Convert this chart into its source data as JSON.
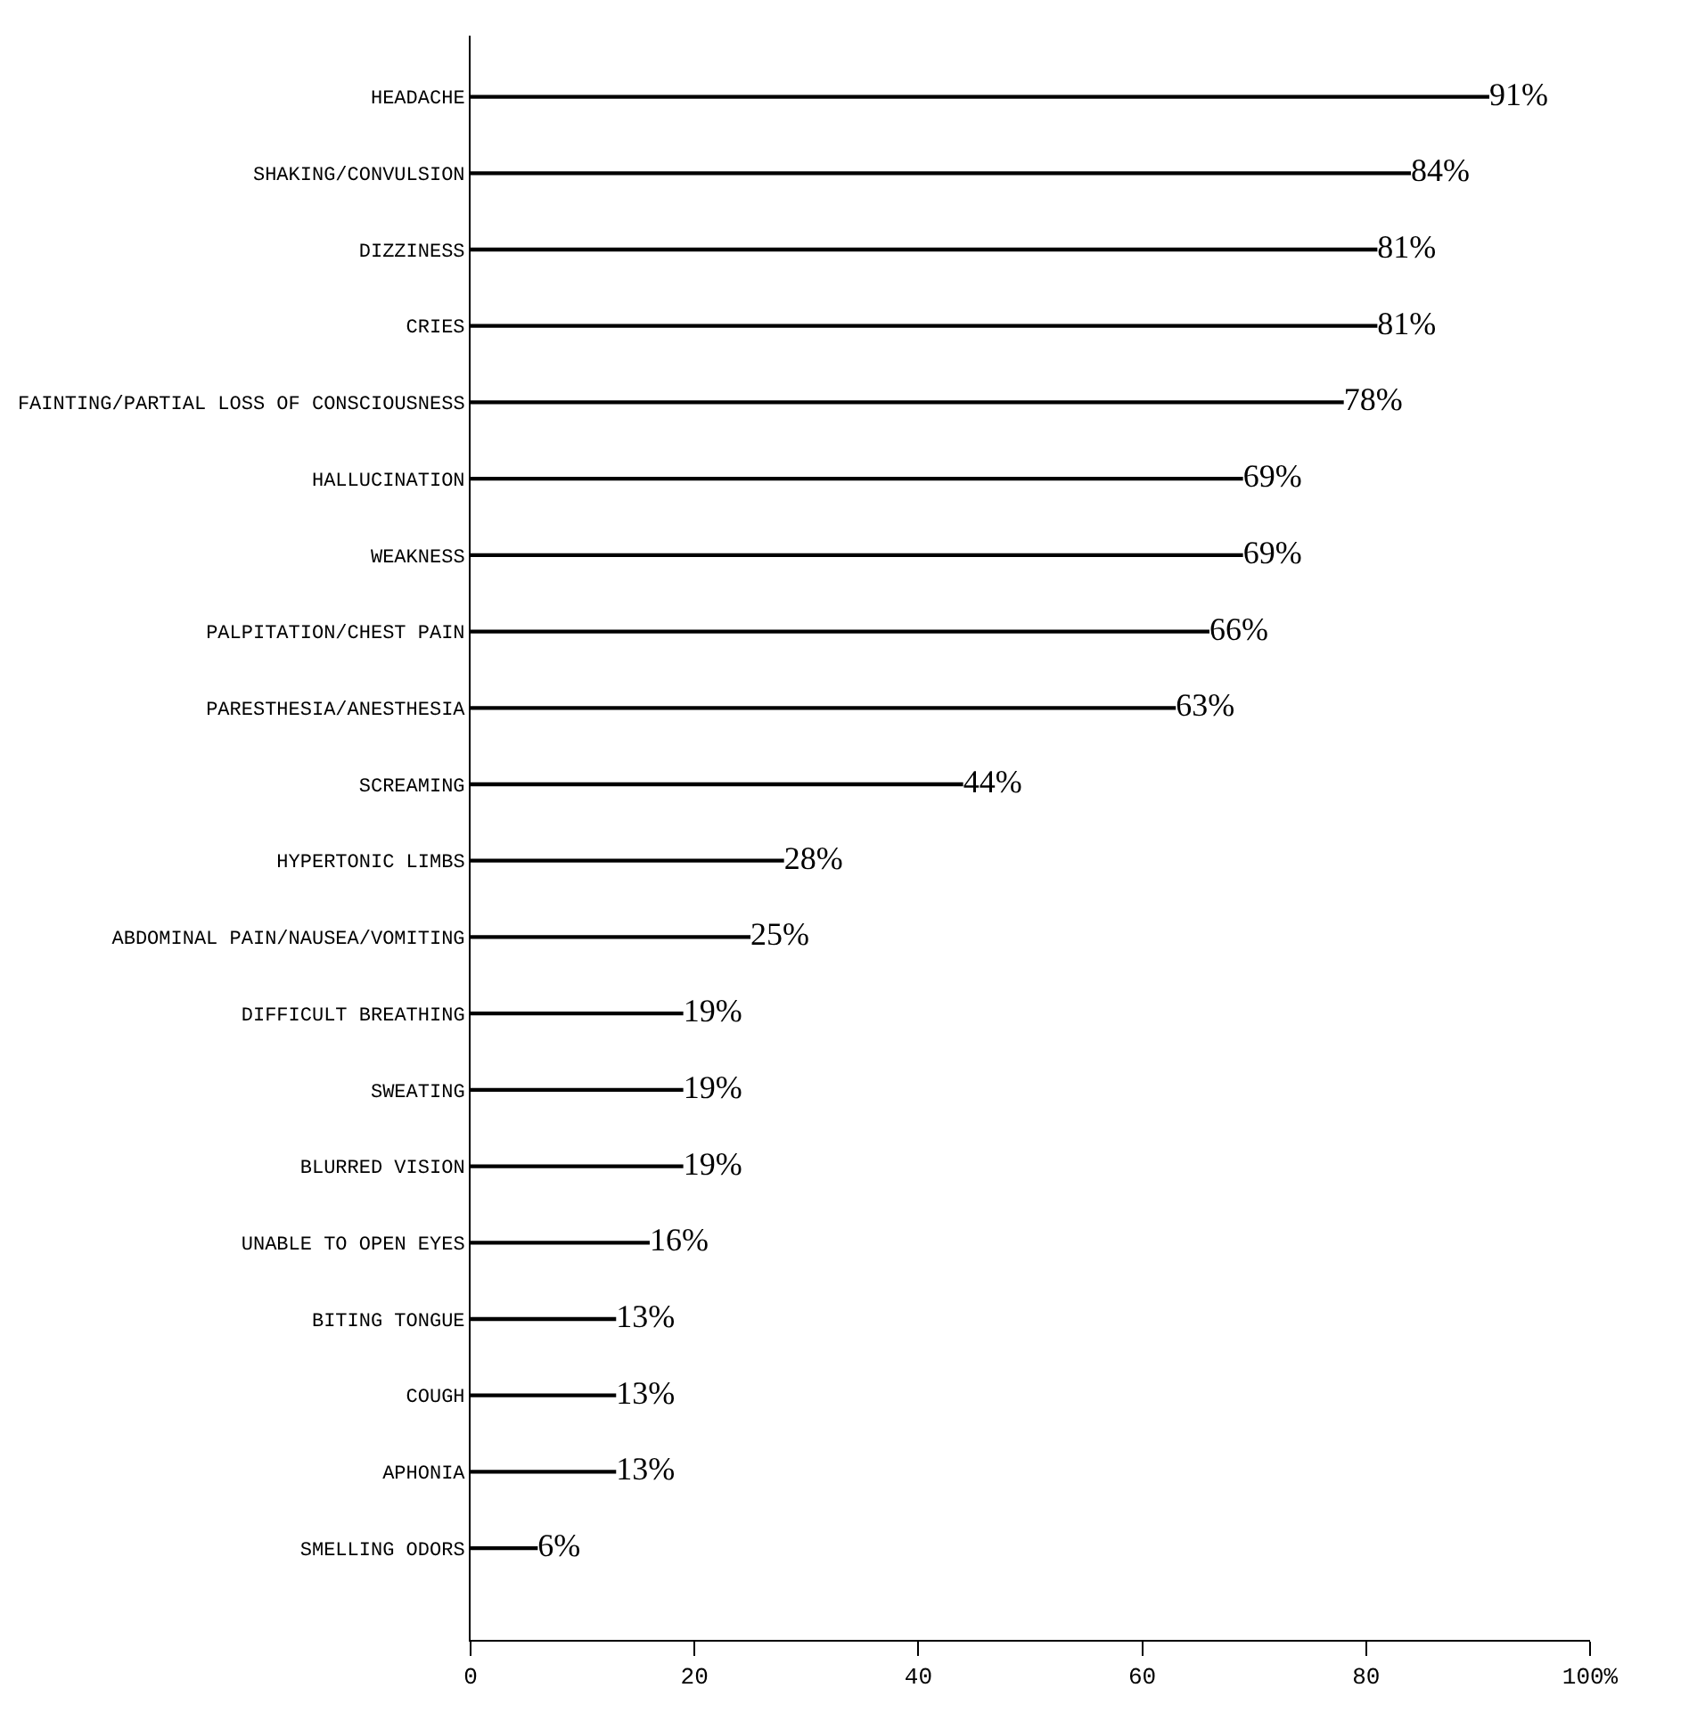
{
  "chart_data": {
    "type": "bar",
    "orientation": "horizontal",
    "categories": [
      "HEADACHE",
      "SHAKING/CONVULSION",
      "DIZZINESS",
      "CRIES",
      "FAINTING/PARTIAL LOSS OF CONSCIOUSNESS",
      "HALLUCINATION",
      "WEAKNESS",
      "PALPITATION/CHEST PAIN",
      "PARESTHESIA/ANESTHESIA",
      "SCREAMING",
      "HYPERTONIC LIMBS",
      "ABDOMINAL PAIN/NAUSEA/VOMITING",
      "DIFFICULT BREATHING",
      "SWEATING",
      "BLURRED VISION",
      "UNABLE TO OPEN EYES",
      "BITING TONGUE",
      "COUGH",
      "APHONIA",
      "SMELLING ODORS"
    ],
    "values": [
      91,
      84,
      81,
      81,
      78,
      69,
      69,
      66,
      63,
      44,
      28,
      25,
      19,
      19,
      19,
      16,
      13,
      13,
      13,
      6
    ],
    "value_labels": [
      "91%",
      "84%",
      "81%",
      "81%",
      "78%",
      "69%",
      "69%",
      "66%",
      "63%",
      "44%",
      "28%",
      "25%",
      "19%",
      "19%",
      "19%",
      "16%",
      "13%",
      "13%",
      "13%",
      "6%"
    ],
    "color": "#000000",
    "xlim": [
      0,
      100
    ],
    "xticks": [
      0,
      20,
      40,
      60,
      80,
      {
        "value": 100,
        "label": "100%"
      }
    ]
  }
}
